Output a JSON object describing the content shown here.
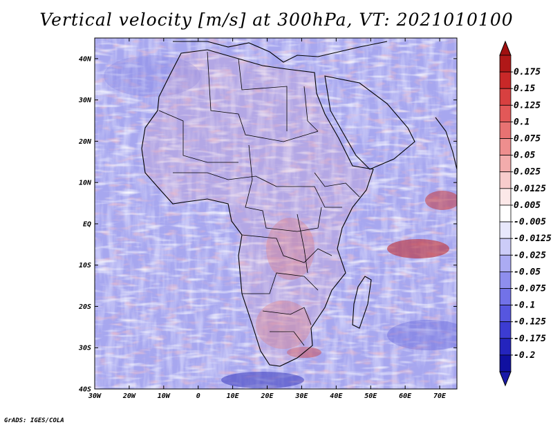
{
  "title": "Vertical velocity [m/s] at 300hPa, VT: 2021010100",
  "credit": "GrADS: IGES/COLA",
  "map": {
    "lat_ticks": [
      "40N",
      "30N",
      "20N",
      "10N",
      "EQ",
      "10S",
      "20S",
      "30S",
      "40S"
    ],
    "lon_ticks": [
      "30W",
      "20W",
      "10W",
      "0",
      "10E",
      "20E",
      "30E",
      "40E",
      "50E",
      "60E",
      "70E"
    ],
    "lat_values": [
      40,
      30,
      20,
      10,
      0,
      -10,
      -20,
      -30,
      -40
    ],
    "lon_values": [
      -30,
      -20,
      -10,
      0,
      10,
      20,
      30,
      40,
      50,
      60,
      70
    ],
    "lon_range": [
      -30,
      75
    ],
    "lat_range": [
      -40,
      45
    ]
  },
  "colorbar": {
    "labels": [
      "0.175",
      "0.15",
      "0.125",
      "0.1",
      "0.075",
      "0.05",
      "0.025",
      "0.0125",
      "0.005",
      "-0.005",
      "-0.0125",
      "-0.025",
      "-0.05",
      "-0.075",
      "-0.1",
      "-0.125",
      "-0.175",
      "-0.2"
    ],
    "colors": [
      "#b01818",
      "#c82828",
      "#d84040",
      "#e25858",
      "#e87272",
      "#ee8e8e",
      "#f3acac",
      "#f8cccc",
      "#fce8e8",
      "#ffffff",
      "#e8e8fc",
      "#ccccf8",
      "#ababf3",
      "#8e8eee",
      "#7272e8",
      "#5656df",
      "#3c3cd2",
      "#2424bd",
      "#1010a0"
    ],
    "max_arrow_color": "#a01010",
    "min_arrow_color": "#1a1aa8"
  },
  "colors": {
    "ocean_base": "#c7c7f7",
    "land_red": "#f0a0a0",
    "border": "#000000"
  }
}
